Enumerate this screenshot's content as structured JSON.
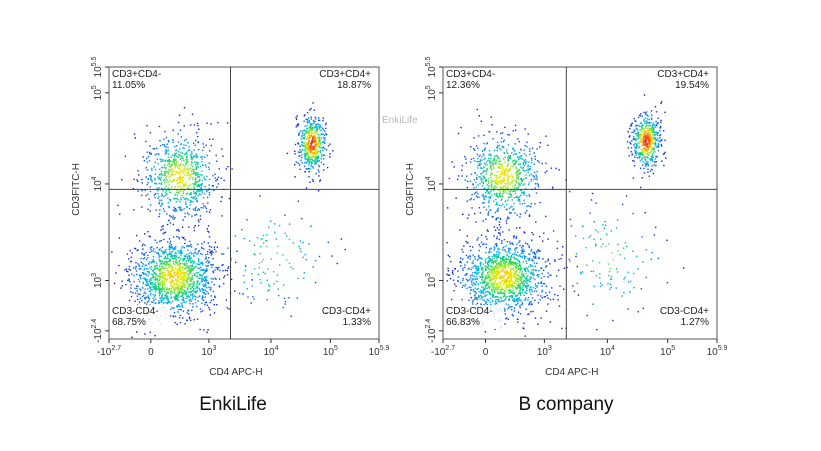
{
  "watermark": "EnkiLife",
  "chart_data": [
    {
      "type": "scatter",
      "caption": "EnkiLife",
      "xlabel": "CD4 APC-H",
      "ylabel": "CD3FITC-H",
      "x_ticks": [
        {
          "base": "-10",
          "exp": "2.7"
        },
        {
          "base": "0",
          "exp": ""
        },
        {
          "base": "10",
          "exp": "3"
        },
        {
          "base": "10",
          "exp": "4"
        },
        {
          "base": "10",
          "exp": "5"
        },
        {
          "base": "10",
          "exp": "5.9"
        }
      ],
      "y_ticks": [
        {
          "base": "-10",
          "exp": "2.4"
        },
        {
          "base": "10",
          "exp": "3"
        },
        {
          "base": "10",
          "exp": "4"
        },
        {
          "base": "10",
          "exp": "5"
        },
        {
          "base": "10",
          "exp": "5.5"
        }
      ],
      "quadrants": [
        {
          "name": "CD3+CD4-",
          "percent": "11.05%",
          "pos": "top-left"
        },
        {
          "name": "CD3+CD4+",
          "percent": "18.87%",
          "pos": "top-right"
        },
        {
          "name": "CD3-CD4-",
          "percent": "68.75%",
          "pos": "bottom-left"
        },
        {
          "name": "CD3-CD4+",
          "percent": "1.33%",
          "pos": "bottom-right"
        }
      ],
      "gate_x_frac": 0.45,
      "gate_y_frac": 0.55,
      "populations": [
        {
          "cx": 0.24,
          "cy": 0.23,
          "sx": 0.08,
          "sy": 0.07,
          "n": 1400,
          "peak": 0.45
        },
        {
          "cx": 0.26,
          "cy": 0.6,
          "sx": 0.07,
          "sy": 0.08,
          "n": 750,
          "peak": 0.4
        },
        {
          "cx": 0.75,
          "cy": 0.72,
          "sx": 0.026,
          "sy": 0.05,
          "n": 500,
          "peak": 0.95
        },
        {
          "cx": 0.6,
          "cy": 0.3,
          "sx": 0.1,
          "sy": 0.1,
          "n": 120,
          "peak": 0.1
        }
      ]
    },
    {
      "type": "scatter",
      "caption": "B company",
      "xlabel": "CD4 APC-H",
      "ylabel": "CD3FITC-H",
      "x_ticks": [
        {
          "base": "-10",
          "exp": "2.7"
        },
        {
          "base": "0",
          "exp": ""
        },
        {
          "base": "10",
          "exp": "3"
        },
        {
          "base": "10",
          "exp": "4"
        },
        {
          "base": "10",
          "exp": "5"
        },
        {
          "base": "10",
          "exp": "5.9"
        }
      ],
      "y_ticks": [
        {
          "base": "-10",
          "exp": "2.4"
        },
        {
          "base": "10",
          "exp": "3"
        },
        {
          "base": "10",
          "exp": "4"
        },
        {
          "base": "10",
          "exp": "5"
        },
        {
          "base": "10",
          "exp": "5.5"
        }
      ],
      "quadrants": [
        {
          "name": "CD3+CD4-",
          "percent": "12.36%",
          "pos": "top-left"
        },
        {
          "name": "CD3+CD4+",
          "percent": "19.54%",
          "pos": "top-right"
        },
        {
          "name": "CD3-CD4-",
          "percent": "66.83%",
          "pos": "bottom-left"
        },
        {
          "name": "CD3-CD4+",
          "percent": "1.27%",
          "pos": "bottom-right"
        }
      ],
      "gate_x_frac": 0.45,
      "gate_y_frac": 0.55,
      "populations": [
        {
          "cx": 0.22,
          "cy": 0.23,
          "sx": 0.08,
          "sy": 0.07,
          "n": 1400,
          "peak": 0.45
        },
        {
          "cx": 0.22,
          "cy": 0.6,
          "sx": 0.07,
          "sy": 0.08,
          "n": 750,
          "peak": 0.4
        },
        {
          "cx": 0.74,
          "cy": 0.73,
          "sx": 0.026,
          "sy": 0.05,
          "n": 500,
          "peak": 0.95
        },
        {
          "cx": 0.6,
          "cy": 0.3,
          "sx": 0.1,
          "sy": 0.1,
          "n": 120,
          "peak": 0.1
        }
      ]
    }
  ]
}
